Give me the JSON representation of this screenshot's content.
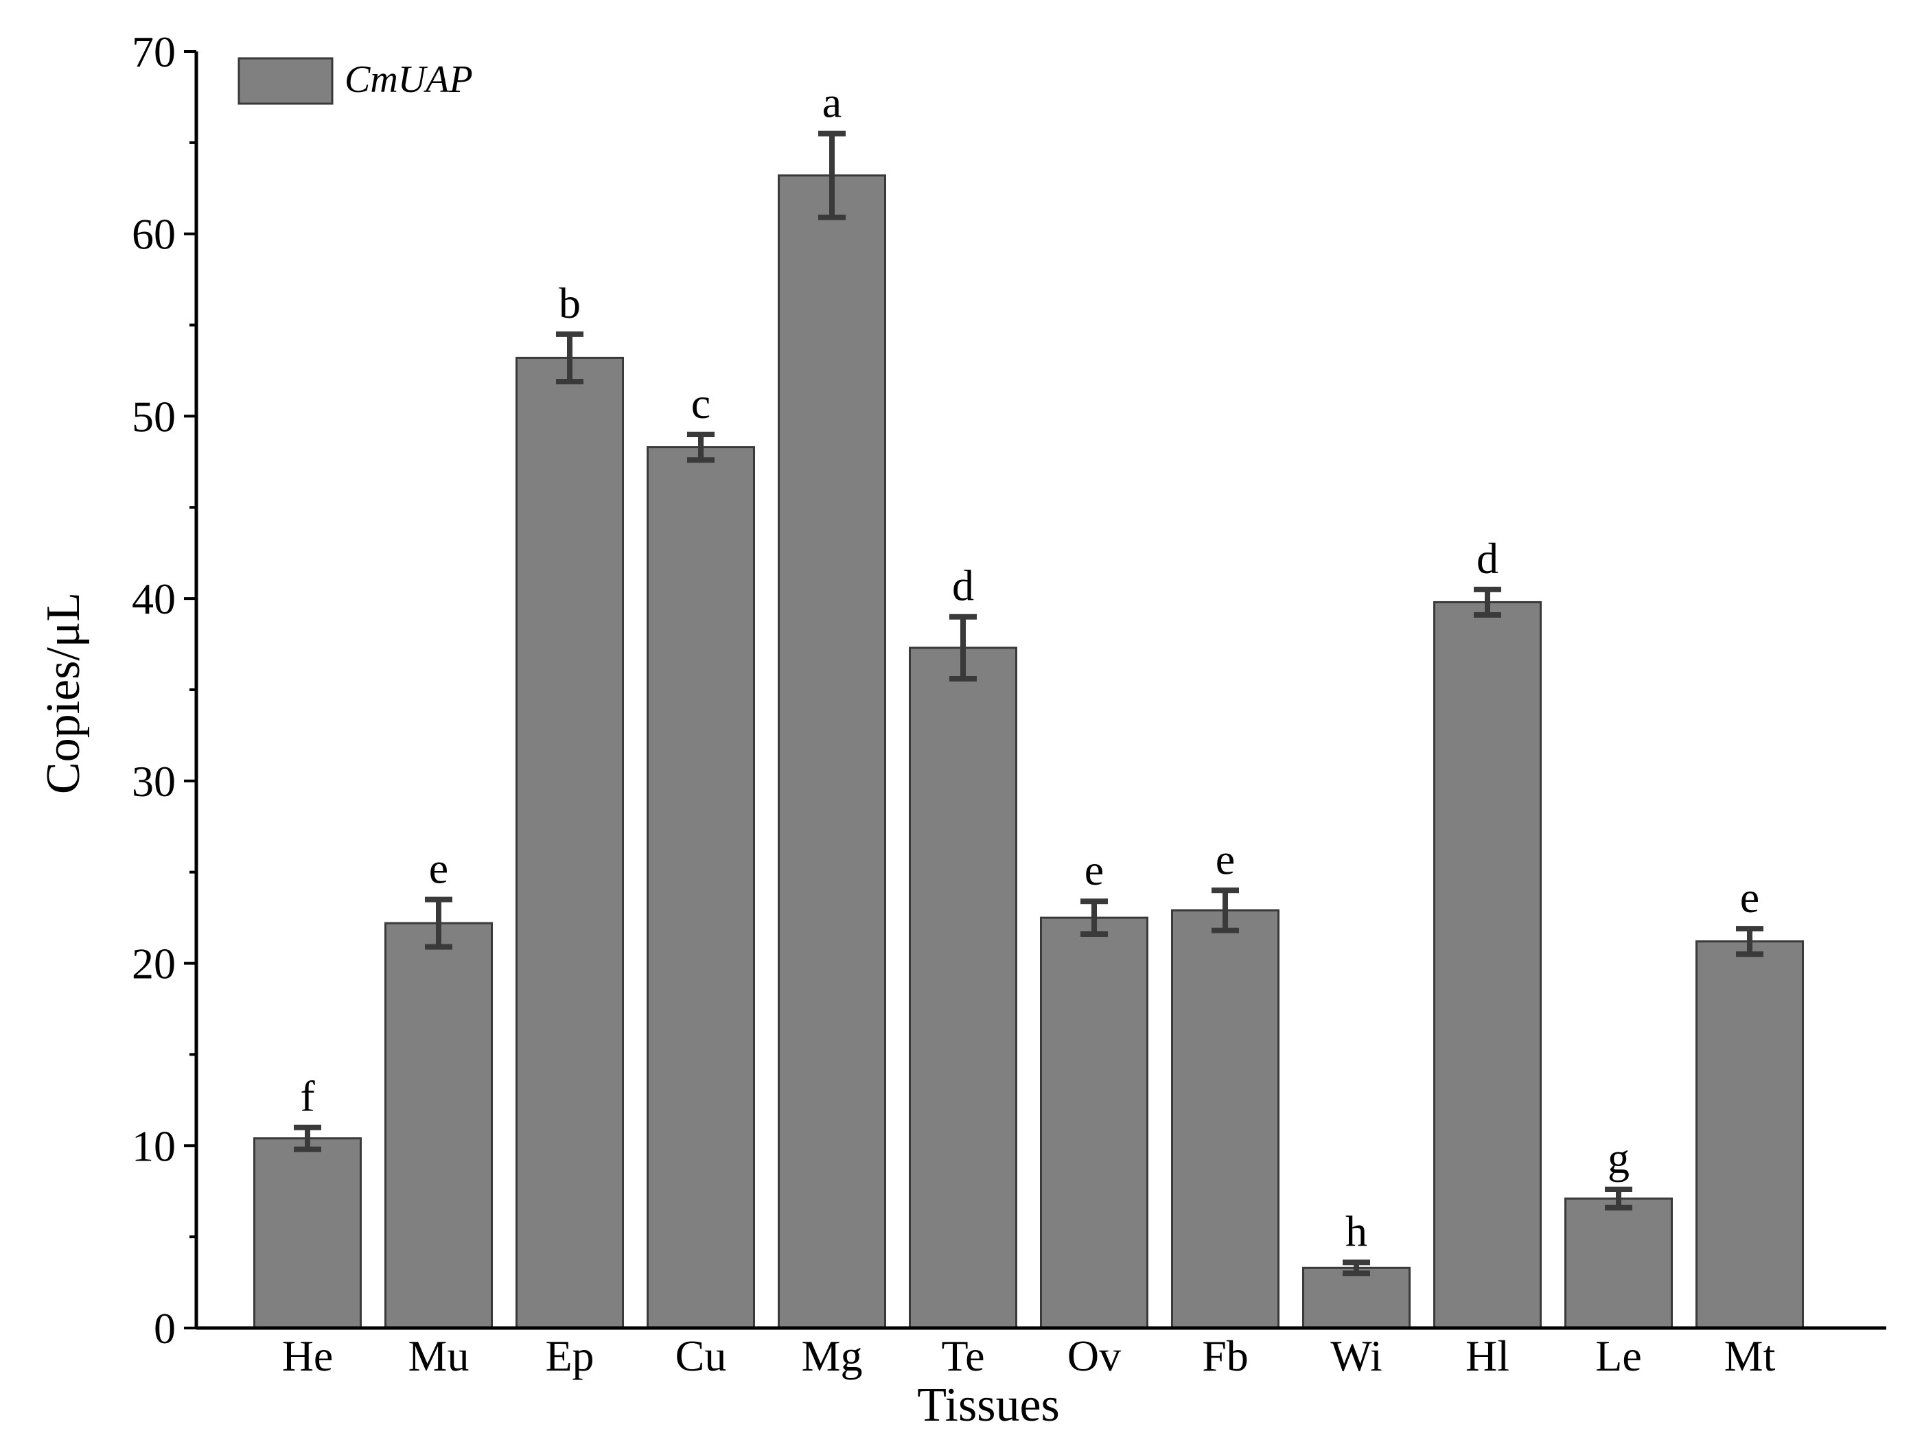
{
  "chart_data": {
    "type": "bar",
    "title": "",
    "xlabel": "Tissues",
    "ylabel": "Copies/μL",
    "ylim": [
      0,
      70
    ],
    "yticks": [
      0,
      10,
      20,
      30,
      40,
      50,
      60,
      70
    ],
    "y_minor_tick_step": 5,
    "grid": false,
    "legend_position": "top-left",
    "categories": [
      "He",
      "Mu",
      "Ep",
      "Cu",
      "Mg",
      "Te",
      "Ov",
      "Fb",
      "Wi",
      "Hl",
      "Le",
      "Mt"
    ],
    "series": [
      {
        "name": "CmUAP",
        "color": "#808080",
        "values": [
          10.4,
          22.2,
          53.2,
          48.3,
          63.2,
          37.3,
          22.5,
          22.9,
          3.3,
          39.8,
          7.1,
          21.2
        ],
        "errors": [
          0.6,
          1.3,
          1.3,
          0.7,
          2.3,
          1.7,
          0.9,
          1.1,
          0.3,
          0.7,
          0.5,
          0.7
        ],
        "significance_letters": [
          "f",
          "e",
          "b",
          "c",
          "a",
          "d",
          "e",
          "e",
          "h",
          "d",
          "g",
          "e"
        ]
      }
    ],
    "colors": {
      "bar_fill": "#808080",
      "bar_stroke": "#3a3a3a",
      "error_bar": "#3a3a3a",
      "axis": "#000000"
    }
  }
}
